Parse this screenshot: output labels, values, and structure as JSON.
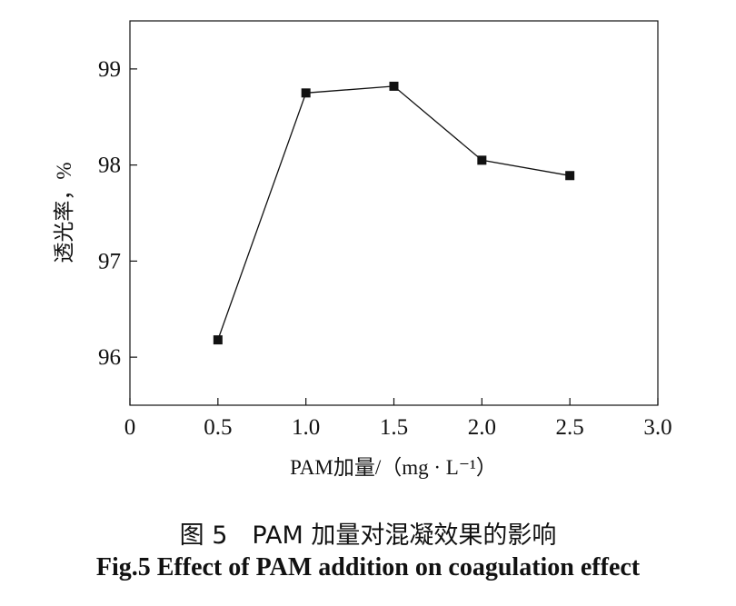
{
  "chart_data": {
    "type": "line",
    "x": [
      0.5,
      1.0,
      1.5,
      2.0,
      2.5
    ],
    "y": [
      96.18,
      98.75,
      98.82,
      98.05,
      97.89
    ],
    "xlim": [
      0,
      3.0
    ],
    "ylim": [
      95.5,
      99.5
    ],
    "xticks": [
      "0",
      "0.5",
      "1.0",
      "1.5",
      "2.0",
      "2.5",
      "3.0"
    ],
    "yticks": [
      "96",
      "97",
      "98",
      "99"
    ],
    "xlabel": "PAM加量/（mg · L⁻¹）",
    "ylabel": "透光率，%",
    "marker": "square",
    "grid": false
  },
  "caption": {
    "zh": "图 5　PAM 加量对混凝效果的影响",
    "en": "Fig.5 Effect of PAM addition on coagulation effect"
  }
}
